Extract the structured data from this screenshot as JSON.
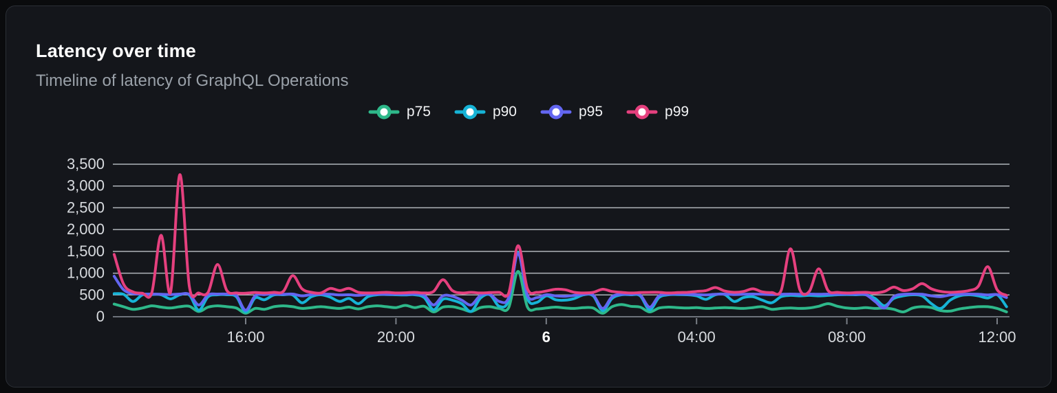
{
  "card": {
    "title": "Latency over time",
    "subtitle": "Timeline of latency of GraphQL Operations"
  },
  "colors": {
    "background": "#14161b",
    "page_background": "#0a0b0d",
    "card_border": "#2b2f36",
    "gridline": "#ccd1d7",
    "axis_line": "#6e737b",
    "tick_mark": "#7a7f87",
    "axis_label": "#d8dbdf",
    "title_text": "#ffffff",
    "subtitle_text": "#9aa1a9",
    "p75": "#2eb88a",
    "p90": "#16b3d6",
    "p95": "#6366f1",
    "p99": "#e5407e"
  },
  "chart_data": {
    "type": "line",
    "title": "Latency over time",
    "subtitle": "Timeline of latency of GraphQL Operations",
    "x_axis": "time",
    "x_start_hour": 12.5,
    "x_step_hour": 0.25,
    "x_ticks": [
      {
        "hour": 16,
        "label": "16:00",
        "bold": false
      },
      {
        "hour": 20,
        "label": "20:00",
        "bold": false
      },
      {
        "hour": 24,
        "label": "6",
        "bold": true
      },
      {
        "hour": 28,
        "label": "04:00",
        "bold": false
      },
      {
        "hour": 32,
        "label": "08:00",
        "bold": false
      },
      {
        "hour": 36,
        "label": "12:00",
        "bold": false
      }
    ],
    "y_ticks": [
      {
        "value": 0,
        "label": "0"
      },
      {
        "value": 500,
        "label": "500"
      },
      {
        "value": 1000,
        "label": "1,000"
      },
      {
        "value": 1500,
        "label": "1,500"
      },
      {
        "value": 2000,
        "label": "2,000"
      },
      {
        "value": 2500,
        "label": "2,500"
      },
      {
        "value": 3000,
        "label": "3,000"
      },
      {
        "value": 3500,
        "label": "3,500"
      }
    ],
    "ylim": [
      0,
      3500
    ],
    "grid": true,
    "legend_position": "top",
    "series": [
      {
        "name": "p75",
        "color": "#2eb88a",
        "values": [
          290,
          230,
          170,
          200,
          250,
          220,
          200,
          230,
          240,
          120,
          220,
          250,
          230,
          200,
          80,
          190,
          170,
          230,
          250,
          230,
          190,
          210,
          230,
          210,
          190,
          220,
          180,
          230,
          250,
          230,
          210,
          260,
          210,
          240,
          110,
          220,
          230,
          180,
          120,
          210,
          230,
          190,
          210,
          1040,
          220,
          180,
          200,
          220,
          200,
          190,
          210,
          200,
          80,
          230,
          280,
          240,
          220,
          110,
          200,
          220,
          210,
          200,
          210,
          190,
          200,
          210,
          200,
          190,
          210,
          230,
          170,
          190,
          200,
          190,
          200,
          240,
          300,
          240,
          200,
          190,
          210,
          190,
          200,
          170,
          110,
          200,
          230,
          210,
          140,
          130,
          180,
          210,
          230,
          230,
          190,
          110
        ]
      },
      {
        "name": "p90",
        "color": "#16b3d6",
        "values": [
          530,
          515,
          350,
          500,
          510,
          505,
          410,
          505,
          500,
          150,
          460,
          505,
          505,
          460,
          110,
          430,
          390,
          500,
          505,
          500,
          320,
          460,
          505,
          450,
          350,
          420,
          300,
          460,
          505,
          510,
          505,
          500,
          505,
          440,
          160,
          400,
          380,
          300,
          120,
          430,
          505,
          240,
          380,
          1480,
          420,
          330,
          480,
          390,
          380,
          420,
          505,
          480,
          140,
          420,
          505,
          505,
          480,
          160,
          440,
          505,
          510,
          505,
          480,
          400,
          505,
          510,
          350,
          440,
          460,
          380,
          320,
          460,
          490,
          480,
          490,
          480,
          490,
          505,
          510,
          505,
          505,
          420,
          250,
          420,
          480,
          505,
          480,
          300,
          190,
          380,
          480,
          505,
          480,
          430,
          505,
          230
        ]
      },
      {
        "name": "p95",
        "color": "#6366f1",
        "values": [
          930,
          620,
          530,
          520,
          520,
          515,
          510,
          520,
          515,
          270,
          500,
          520,
          520,
          490,
          150,
          480,
          510,
          520,
          515,
          520,
          480,
          510,
          520,
          515,
          500,
          505,
          490,
          515,
          520,
          515,
          520,
          515,
          520,
          490,
          270,
          480,
          470,
          380,
          270,
          490,
          515,
          350,
          440,
          1450,
          490,
          440,
          505,
          480,
          470,
          490,
          515,
          500,
          190,
          460,
          515,
          515,
          500,
          220,
          480,
          515,
          520,
          515,
          510,
          500,
          515,
          520,
          510,
          515,
          520,
          515,
          510,
          515,
          520,
          515,
          520,
          515,
          520,
          515,
          520,
          515,
          510,
          350,
          200,
          460,
          515,
          520,
          515,
          480,
          460,
          500,
          515,
          520,
          515,
          500,
          510,
          440
        ]
      },
      {
        "name": "p99",
        "color": "#e5407e",
        "values": [
          1430,
          750,
          570,
          540,
          545,
          1870,
          560,
          3260,
          700,
          545,
          560,
          1200,
          600,
          545,
          540,
          555,
          545,
          560,
          580,
          945,
          640,
          560,
          545,
          650,
          600,
          650,
          560,
          545,
          550,
          560,
          545,
          550,
          560,
          545,
          580,
          850,
          600,
          545,
          560,
          545,
          555,
          560,
          540,
          1630,
          640,
          560,
          590,
          630,
          620,
          560,
          545,
          560,
          630,
          580,
          560,
          545,
          555,
          560,
          560,
          545,
          555,
          560,
          580,
          600,
          670,
          590,
          560,
          580,
          640,
          570,
          555,
          600,
          1560,
          620,
          580,
          1100,
          600,
          560,
          545,
          555,
          560,
          545,
          580,
          680,
          600,
          640,
          760,
          640,
          580,
          560,
          570,
          600,
          700,
          1150,
          620,
          490
        ]
      }
    ]
  }
}
